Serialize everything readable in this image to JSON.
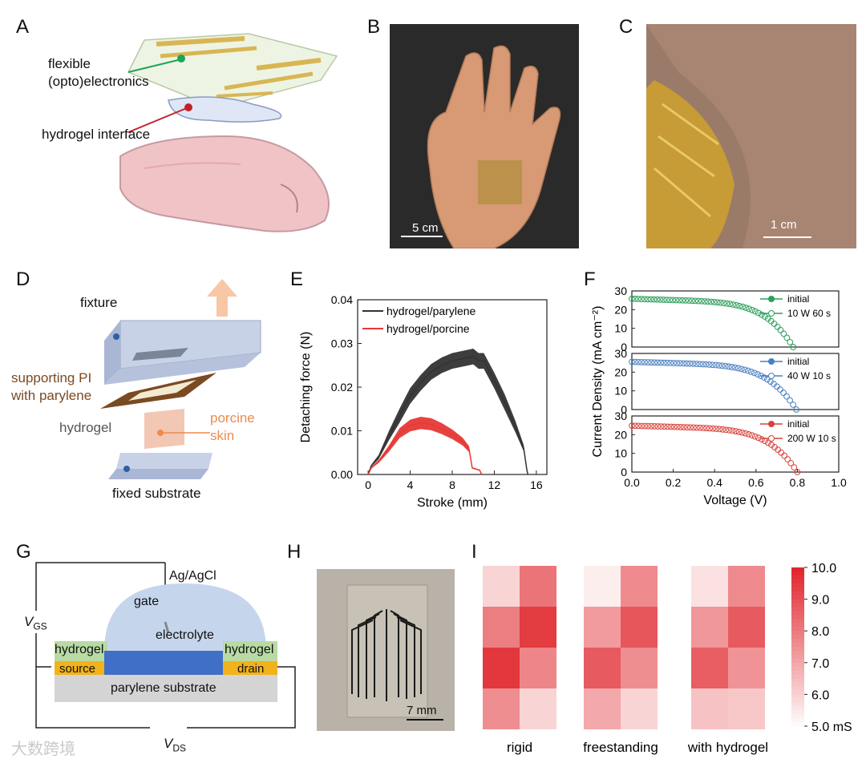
{
  "panels": {
    "A": {
      "label": "A",
      "flexible_line1": "flexible",
      "flexible_line2": "(opto)electronics",
      "hydrogel_interface": "hydrogel interface"
    },
    "B": {
      "label": "B",
      "scale": "5 cm"
    },
    "C": {
      "label": "C",
      "scale": "1 cm"
    },
    "D": {
      "label": "D",
      "fixture": "fixture",
      "supporting_line1": "supporting PI",
      "supporting_line2": "with parylene",
      "hydrogel": "hydrogel",
      "porcine_line1": "porcine",
      "porcine_line2": "skin",
      "fixed_substrate": "fixed substrate"
    },
    "E": {
      "label": "E"
    },
    "F": {
      "label": "F"
    },
    "G": {
      "label": "G",
      "ag_agcl": "Ag/AgCl",
      "gate": "gate",
      "electrolyte": "electrolyte",
      "hydrogel_left": "hydrogel",
      "hydrogel_right": "hydrogel",
      "source": "source",
      "drain": "drain",
      "substrate": "parylene substrate",
      "vgs_main": "V",
      "vgs_sub": "GS",
      "vds_main": "V",
      "vds_sub": "DS"
    },
    "H": {
      "label": "H",
      "scale": "7 mm"
    },
    "I": {
      "label": "I"
    }
  },
  "watermark": "大数跨境",
  "colors": {
    "parylene_line": "#333333",
    "porcine_line": "#e53935",
    "green": "#2e9e5b",
    "blue": "#4a7fc1",
    "red": "#d9413a",
    "source_drain": "#f2b21b",
    "channel": "#3f6fc7",
    "hydrogel_block": "#b8dba3",
    "dome": "#c5d5ec",
    "substrate": "#d4d4d4",
    "heat_max": "#e0262c"
  },
  "chart_data": [
    {
      "panel": "E",
      "type": "line",
      "xlabel": "Stroke (mm)",
      "ylabel": "Detaching force (N)",
      "xlim": [
        -1,
        17
      ],
      "ylim": [
        0,
        0.04
      ],
      "xticks": [
        "0",
        "4",
        "8",
        "12",
        "16"
      ],
      "yticks": [
        "0.00",
        "0.01",
        "0.02",
        "0.03",
        "0.04"
      ],
      "series": [
        {
          "name": "hydrogel/parylene",
          "x": [
            0,
            0.3,
            1,
            2,
            3,
            4,
            5,
            6,
            7,
            8,
            9,
            10,
            10.5,
            11,
            12,
            13,
            14,
            14.8,
            15.1,
            15.2
          ],
          "y": [
            0,
            0.002,
            0.004,
            0.009,
            0.0135,
            0.018,
            0.021,
            0.0235,
            0.025,
            0.026,
            0.0265,
            0.027,
            0.026,
            0.026,
            0.0215,
            0.0165,
            0.011,
            0.006,
            0.001,
            0
          ]
        },
        {
          "name": "hydrogel/porcine",
          "x": [
            0,
            0.3,
            1,
            2,
            3,
            4,
            5,
            6,
            7,
            8,
            9,
            9.6,
            9.9,
            10.3,
            10.6,
            10.8
          ],
          "y": [
            0,
            0.0015,
            0.003,
            0.006,
            0.0095,
            0.0112,
            0.0118,
            0.0115,
            0.0105,
            0.0092,
            0.0075,
            0.0058,
            0.0015,
            0.0012,
            0.001,
            0
          ]
        }
      ]
    },
    {
      "panel": "F",
      "type": "scatter",
      "xlabel": "Voltage (V)",
      "ylabel": "Current Density (mA cm⁻²)",
      "xlim": [
        0,
        1.0
      ],
      "ylim": [
        0,
        30
      ],
      "xticks": [
        "0.0",
        "0.2",
        "0.4",
        "0.6",
        "0.8",
        "1.0"
      ],
      "yticks": [
        "0",
        "5",
        "10",
        "15",
        "20",
        "25",
        "30"
      ],
      "subplots": [
        {
          "series": [
            {
              "name": "initial",
              "marker": "filled"
            },
            {
              "name": "10 W 60 s",
              "marker": "open"
            }
          ],
          "jsc": 25.8,
          "voc": 0.78,
          "color_key": "green"
        },
        {
          "series": [
            {
              "name": "initial",
              "marker": "filled"
            },
            {
              "name": "40 W 10 s",
              "marker": "open"
            }
          ],
          "jsc": 25.5,
          "voc": 0.795,
          "color_key": "blue"
        },
        {
          "series": [
            {
              "name": "initial",
              "marker": "filled"
            },
            {
              "name": "200 W 10 s",
              "marker": "open"
            }
          ],
          "jsc": 24.8,
          "voc": 0.8,
          "color_key": "red"
        }
      ]
    },
    {
      "panel": "I",
      "type": "heatmap",
      "unit": "mS",
      "vmin": 5.0,
      "vmax": 10.0,
      "colorbar_ticks": [
        "10.0",
        "9.0",
        "8.0",
        "7.0",
        "6.0",
        "5.0 mS"
      ],
      "colorbar_values": [
        10,
        9,
        8,
        7,
        6,
        5
      ],
      "maps": [
        {
          "label": "rigid",
          "values": [
            [
              6.0,
              8.2
            ],
            [
              8.0,
              9.5
            ],
            [
              9.6,
              7.8
            ],
            [
              7.6,
              6.0
            ]
          ]
        },
        {
          "label": "freestanding",
          "values": [
            [
              5.4,
              7.7
            ],
            [
              7.3,
              8.9
            ],
            [
              8.8,
              7.6
            ],
            [
              7.0,
              6.0
            ]
          ]
        },
        {
          "label": "with hydrogel",
          "values": [
            [
              5.7,
              7.7
            ],
            [
              7.4,
              8.8
            ],
            [
              8.7,
              7.5
            ],
            [
              6.4,
              6.3
            ]
          ]
        }
      ]
    }
  ]
}
